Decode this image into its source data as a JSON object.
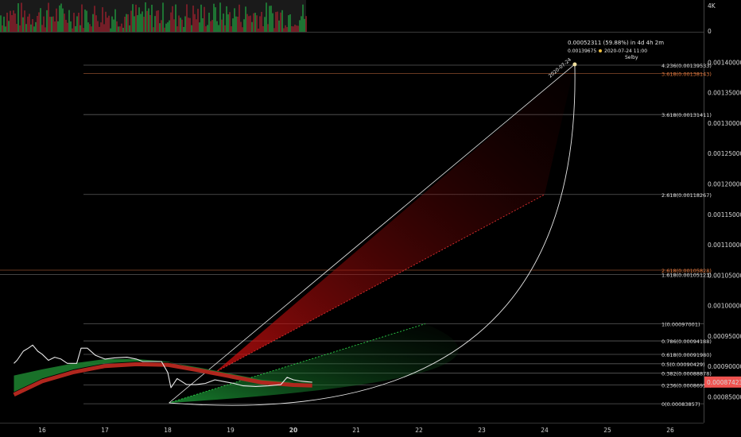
{
  "chart_data": {
    "type": "line",
    "x_ticks": [
      "16",
      "17",
      "18",
      "19",
      "20",
      "21",
      "22",
      "23",
      "24",
      "25",
      "26"
    ],
    "x_highlight": "20",
    "ylim": [
      0.00081,
      0.001445
    ],
    "y_ticks": [
      "0.00140000",
      "0.00135000",
      "0.00130000",
      "0.00125000",
      "0.00120000",
      "0.00115000",
      "0.00110000",
      "0.00105000",
      "0.00100000",
      "0.00095000",
      "0.00090000",
      "0.00085000"
    ],
    "y_tick_values": [
      0.0014,
      0.00135,
      0.0013,
      0.00125,
      0.0012,
      0.00115,
      0.0011,
      0.00105,
      0.001,
      0.00095,
      0.0009,
      0.00085
    ],
    "fib_levels": [
      {
        "label": "4.236(0.00139533)",
        "value": 0.00139533,
        "color": "#e0e0e0"
      },
      {
        "label": "3.618(0.00138143)",
        "value": 0.00138143,
        "color": "#e27a3f"
      },
      {
        "label": "3.618(0.00131411)",
        "value": 0.00131411,
        "color": "#e0e0e0"
      },
      {
        "label": "2.618(0.00118267)",
        "value": 0.00118267,
        "color": "#e0e0e0"
      },
      {
        "label": "2.618(0.00105828)",
        "value": 0.00105828,
        "color": "#e27a3f"
      },
      {
        "label": "1.618(0.00105123)",
        "value": 0.00105123,
        "color": "#e0e0e0"
      },
      {
        "label": "1(0.00097001)",
        "value": 0.00097001,
        "color": "#e0e0e0"
      },
      {
        "label": "0.786(0.00094188)",
        "value": 0.00094188,
        "color": "#e0e0e0"
      },
      {
        "label": "0.618(0.00091980)",
        "value": 0.0009198,
        "color": "#e0e0e0"
      },
      {
        "label": "0.5(0.00090429)",
        "value": 0.00090429,
        "color": "#e0e0e0"
      },
      {
        "label": "0.382(0.00088878)",
        "value": 0.00088878,
        "color": "#e0e0e0"
      },
      {
        "label": "0.236(0.00086959)",
        "value": 0.00086959,
        "color": "#e0e0e0"
      },
      {
        "label": "0(0.00083857)",
        "value": 0.00083857,
        "color": "#e0e0e0"
      }
    ],
    "current_price": {
      "label": "0.00087423",
      "value": 0.00087423,
      "color": "#ef5350"
    },
    "volume_axis": [
      "4K",
      "0"
    ],
    "annotation": {
      "line1": "0.00052311 (59.88%) in 4d 4h 2m",
      "price": "0.00139675",
      "datetime": "2020-07-24 11:00",
      "author": "Selby",
      "rotated_date": "2020-07-24"
    },
    "price_path": [
      [
        15.55,
        0.000905
      ],
      [
        15.6,
        0.00091
      ],
      [
        15.7,
        0.000925
      ],
      [
        15.78,
        0.00093
      ],
      [
        15.85,
        0.000935
      ],
      [
        15.93,
        0.000925
      ],
      [
        16.0,
        0.00092
      ],
      [
        16.1,
        0.00091
      ],
      [
        16.2,
        0.000915
      ],
      [
        16.3,
        0.000912
      ],
      [
        16.4,
        0.000905
      ],
      [
        16.55,
        0.000905
      ],
      [
        16.62,
        0.00093
      ],
      [
        16.72,
        0.00093
      ],
      [
        16.85,
        0.000918
      ],
      [
        17.0,
        0.000912
      ],
      [
        17.15,
        0.000914
      ],
      [
        17.35,
        0.000915
      ],
      [
        17.5,
        0.000912
      ],
      [
        17.6,
        0.000908
      ],
      [
        17.75,
        0.000908
      ],
      [
        17.9,
        0.000908
      ],
      [
        18.0,
        0.00089
      ],
      [
        18.05,
        0.000865
      ],
      [
        18.15,
        0.00088
      ],
      [
        18.3,
        0.00087
      ],
      [
        18.45,
        0.00087
      ],
      [
        18.6,
        0.000872
      ],
      [
        18.75,
        0.000878
      ],
      [
        18.9,
        0.000875
      ],
      [
        19.05,
        0.000872
      ],
      [
        19.2,
        0.000868
      ],
      [
        19.4,
        0.000867
      ],
      [
        19.6,
        0.000868
      ],
      [
        19.8,
        0.00087
      ],
      [
        19.9,
        0.000882
      ],
      [
        20.0,
        0.000878
      ],
      [
        20.1,
        0.000876
      ],
      [
        20.2,
        0.000875
      ],
      [
        20.3,
        0.000874
      ]
    ],
    "ribbon_top": [
      [
        15.55,
        0.000885
      ],
      [
        16.0,
        0.000895
      ],
      [
        16.5,
        0.000905
      ],
      [
        17.0,
        0.000912
      ],
      [
        17.5,
        0.000912
      ],
      [
        18.0,
        0.000908
      ],
      [
        18.5,
        0.000895
      ],
      [
        19.0,
        0.00088
      ],
      [
        19.5,
        0.00087
      ],
      [
        20.0,
        0.000874
      ],
      [
        20.3,
        0.000874
      ]
    ],
    "ribbon_bottom": [
      [
        15.55,
        0.000858
      ],
      [
        16.0,
        0.00088
      ],
      [
        16.5,
        0.000895
      ],
      [
        17.0,
        0.000905
      ],
      [
        17.5,
        0.000908
      ],
      [
        18.0,
        0.000907
      ],
      [
        18.5,
        0.000898
      ],
      [
        19.0,
        0.000888
      ],
      [
        19.5,
        0.000878
      ],
      [
        20.0,
        0.000874
      ],
      [
        20.3,
        0.000873
      ]
    ],
    "projection": {
      "origin": [
        18.02,
        0.00084
      ],
      "top": [
        24.48,
        0.0013967
      ],
      "red_band_mid": [
        24.0,
        0.00118267
      ],
      "green_band_end": [
        22.1,
        0.00097
      ],
      "fan_start": [
        18.75,
        0.00089
      ]
    }
  }
}
